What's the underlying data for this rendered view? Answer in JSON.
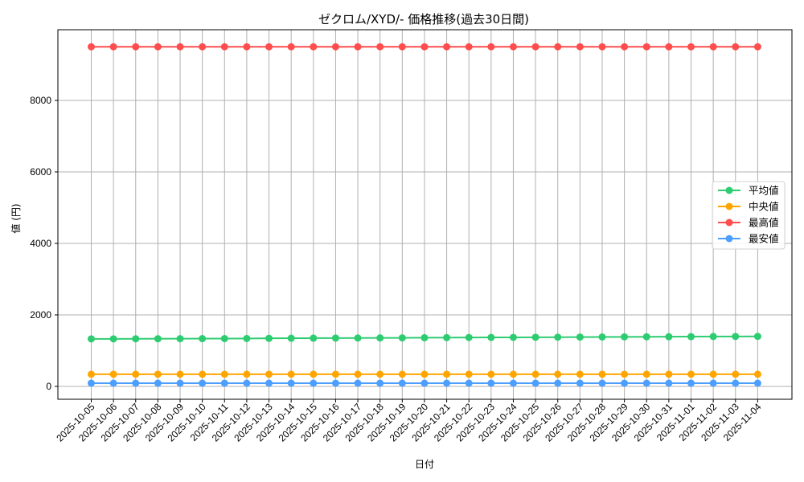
{
  "chart_data": {
    "type": "line",
    "title": "ゼクロム/XYD/- 価格推移(過去30日間)",
    "xlabel": "日付",
    "ylabel": "値 (円)",
    "ylim": [
      -350,
      9950
    ],
    "yticks": [
      0,
      2000,
      4000,
      6000,
      8000
    ],
    "grid": true,
    "legend_position": "center right",
    "x": [
      "2025-10-05",
      "2025-10-06",
      "2025-10-07",
      "2025-10-08",
      "2025-10-09",
      "2025-10-10",
      "2025-10-11",
      "2025-10-12",
      "2025-10-13",
      "2025-10-14",
      "2025-10-15",
      "2025-10-16",
      "2025-10-17",
      "2025-10-18",
      "2025-10-19",
      "2025-10-20",
      "2025-10-21",
      "2025-10-22",
      "2025-10-23",
      "2025-10-24",
      "2025-10-25",
      "2025-10-26",
      "2025-10-27",
      "2025-10-28",
      "2025-10-29",
      "2025-10-30",
      "2025-10-31",
      "2025-11-01",
      "2025-11-02",
      "2025-11-03",
      "2025-11-04"
    ],
    "series": [
      {
        "name": "平均値",
        "color": "#2ecc71",
        "values": [
          1330,
          1330,
          1332,
          1333,
          1335,
          1336,
          1338,
          1340,
          1345,
          1348,
          1350,
          1352,
          1354,
          1356,
          1358,
          1362,
          1365,
          1368,
          1370,
          1372,
          1375,
          1377,
          1380,
          1382,
          1385,
          1388,
          1390,
          1392,
          1395,
          1397,
          1400
        ]
      },
      {
        "name": "中央値",
        "color": "#ffa500",
        "values": [
          340,
          340,
          340,
          340,
          340,
          340,
          340,
          340,
          340,
          340,
          340,
          340,
          340,
          340,
          340,
          340,
          340,
          340,
          340,
          340,
          340,
          340,
          340,
          340,
          340,
          340,
          340,
          340,
          340,
          340,
          340
        ]
      },
      {
        "name": "最高値",
        "color": "#ff4d4d",
        "values": [
          9500,
          9500,
          9500,
          9500,
          9500,
          9500,
          9500,
          9500,
          9500,
          9500,
          9500,
          9500,
          9500,
          9500,
          9500,
          9500,
          9500,
          9500,
          9500,
          9500,
          9500,
          9500,
          9500,
          9500,
          9500,
          9500,
          9500,
          9500,
          9500,
          9500,
          9500
        ]
      },
      {
        "name": "最安値",
        "color": "#4d9fff",
        "values": [
          90,
          90,
          90,
          90,
          90,
          90,
          90,
          90,
          90,
          90,
          90,
          90,
          90,
          90,
          90,
          90,
          90,
          90,
          90,
          90,
          90,
          90,
          90,
          90,
          90,
          90,
          90,
          90,
          90,
          90,
          90
        ]
      }
    ]
  }
}
